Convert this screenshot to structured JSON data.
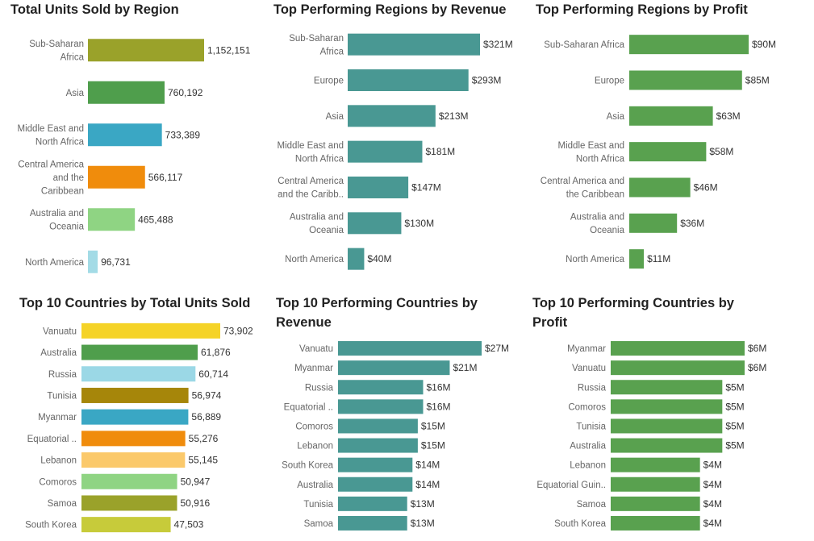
{
  "chart_data": [
    {
      "type": "bar",
      "orientation": "horizontal",
      "title": "Total Units Sold by Region",
      "categories": [
        "Sub-Saharan Africa",
        "Asia",
        "Middle East and North Africa",
        "Central America and the Caribbean",
        "Australia and Oceania",
        "North America"
      ],
      "category_labels": [
        [
          "Sub-Saharan",
          "Africa"
        ],
        [
          "Asia"
        ],
        [
          "Middle East and",
          "North Africa"
        ],
        [
          "Central America",
          "and the",
          "Caribbean"
        ],
        [
          "Australia and",
          "Oceania"
        ],
        [
          "North America"
        ]
      ],
      "values": [
        1152151,
        760192,
        733389,
        566117,
        465488,
        96731
      ],
      "value_labels": [
        "1,152,151",
        "760,192",
        "733,389",
        "566,117",
        "465,488",
        "96,731"
      ],
      "colors": [
        "#9aa22a",
        "#4f9e4c",
        "#3aa7c4",
        "#f08c0c",
        "#8fd483",
        "#a3dbe6"
      ]
    },
    {
      "type": "bar",
      "orientation": "horizontal",
      "title": "Top Performing Regions by Revenue",
      "categories": [
        "Sub-Saharan Africa",
        "Europe",
        "Asia",
        "Middle East and North Africa",
        "Central America and the Caribb..",
        "Australia and Oceania",
        "North America"
      ],
      "category_labels": [
        [
          "Sub-Saharan",
          "Africa"
        ],
        [
          "Europe"
        ],
        [
          "Asia"
        ],
        [
          "Middle East and",
          "North Africa"
        ],
        [
          "Central America",
          "and the Caribb.."
        ],
        [
          "Australia and",
          "Oceania"
        ],
        [
          "North America"
        ]
      ],
      "values": [
        321,
        293,
        213,
        181,
        147,
        130,
        40
      ],
      "value_labels": [
        "$321M",
        "$293M",
        "$213M",
        "$181M",
        "$147M",
        "$130M",
        "$40M"
      ],
      "unit": "$M",
      "colors": [
        "#499893"
      ]
    },
    {
      "type": "bar",
      "orientation": "horizontal",
      "title": "Top Performing Regions by Profit",
      "categories": [
        "Sub-Saharan Africa",
        "Europe",
        "Asia",
        "Middle East and North Africa",
        "Central America and the Caribbean",
        "Australia and Oceania",
        "North America"
      ],
      "category_labels": [
        [
          "Sub-Saharan Africa"
        ],
        [
          "Europe"
        ],
        [
          "Asia"
        ],
        [
          "Middle East and",
          "North Africa"
        ],
        [
          "Central America and",
          "the Caribbean"
        ],
        [
          "Australia and",
          "Oceania"
        ],
        [
          "North America"
        ]
      ],
      "values": [
        90,
        85,
        63,
        58,
        46,
        36,
        11
      ],
      "value_labels": [
        "$90M",
        "$85M",
        "$63M",
        "$58M",
        "$46M",
        "$36M",
        "$11M"
      ],
      "unit": "$M",
      "colors": [
        "#59a14f"
      ]
    },
    {
      "type": "bar",
      "orientation": "horizontal",
      "title": "Top 10 Countries by Total Units Sold",
      "categories": [
        "Vanuatu",
        "Australia",
        "Russia",
        "Tunisia",
        "Myanmar",
        "Equatorial ..",
        "Lebanon",
        "Comoros",
        "Samoa",
        "South Korea"
      ],
      "category_labels": [
        [
          "Vanuatu"
        ],
        [
          "Australia"
        ],
        [
          "Russia"
        ],
        [
          "Tunisia"
        ],
        [
          "Myanmar"
        ],
        [
          "Equatorial .."
        ],
        [
          "Lebanon"
        ],
        [
          "Comoros"
        ],
        [
          "Samoa"
        ],
        [
          "South Korea"
        ]
      ],
      "values": [
        73902,
        61876,
        60714,
        56974,
        56889,
        55276,
        55145,
        50947,
        50916,
        47503
      ],
      "value_labels": [
        "73,902",
        "61,876",
        "60,714",
        "56,974",
        "56,889",
        "55,276",
        "55,145",
        "50,947",
        "50,916",
        "47,503"
      ],
      "colors": [
        "#f5d327",
        "#4f9e4c",
        "#9bd8e6",
        "#a6860a",
        "#3aa7c4",
        "#f08c0c",
        "#fbc96b",
        "#8fd483",
        "#9aa22a",
        "#c7cb3a"
      ]
    },
    {
      "type": "bar",
      "orientation": "horizontal",
      "title": "Top 10 Performing Countries by Revenue",
      "title_lines": [
        "Top 10 Performing Countries by",
        "Revenue"
      ],
      "categories": [
        "Vanuatu",
        "Myanmar",
        "Russia",
        "Equatorial ..",
        "Comoros",
        "Lebanon",
        "South Korea",
        "Australia",
        "Tunisia",
        "Samoa"
      ],
      "category_labels": [
        [
          "Vanuatu"
        ],
        [
          "Myanmar"
        ],
        [
          "Russia"
        ],
        [
          "Equatorial .."
        ],
        [
          "Comoros"
        ],
        [
          "Lebanon"
        ],
        [
          "South Korea"
        ],
        [
          "Australia"
        ],
        [
          "Tunisia"
        ],
        [
          "Samoa"
        ]
      ],
      "values": [
        27,
        21,
        16,
        16,
        15,
        15,
        14,
        14,
        13,
        13
      ],
      "value_labels": [
        "$27M",
        "$21M",
        "$16M",
        "$16M",
        "$15M",
        "$15M",
        "$14M",
        "$14M",
        "$13M",
        "$13M"
      ],
      "unit": "$M",
      "colors": [
        "#499893"
      ]
    },
    {
      "type": "bar",
      "orientation": "horizontal",
      "title": "Top 10 Performing Countries by Profit",
      "title_lines": [
        "Top 10 Performing Countries by",
        "Profit"
      ],
      "categories": [
        "Myanmar",
        "Vanuatu",
        "Russia",
        "Comoros",
        "Tunisia",
        "Australia",
        "Lebanon",
        "Equatorial Guin..",
        "Samoa",
        "South Korea"
      ],
      "category_labels": [
        [
          "Myanmar"
        ],
        [
          "Vanuatu"
        ],
        [
          "Russia"
        ],
        [
          "Comoros"
        ],
        [
          "Tunisia"
        ],
        [
          "Australia"
        ],
        [
          "Lebanon"
        ],
        [
          "Equatorial Guin.."
        ],
        [
          "Samoa"
        ],
        [
          "South Korea"
        ]
      ],
      "values": [
        6,
        6,
        5,
        5,
        5,
        5,
        4,
        4,
        4,
        4
      ],
      "value_labels": [
        "$6M",
        "$6M",
        "$5M",
        "$5M",
        "$5M",
        "$5M",
        "$4M",
        "$4M",
        "$4M",
        "$4M"
      ],
      "unit": "$M",
      "colors": [
        "#59a14f"
      ]
    }
  ]
}
